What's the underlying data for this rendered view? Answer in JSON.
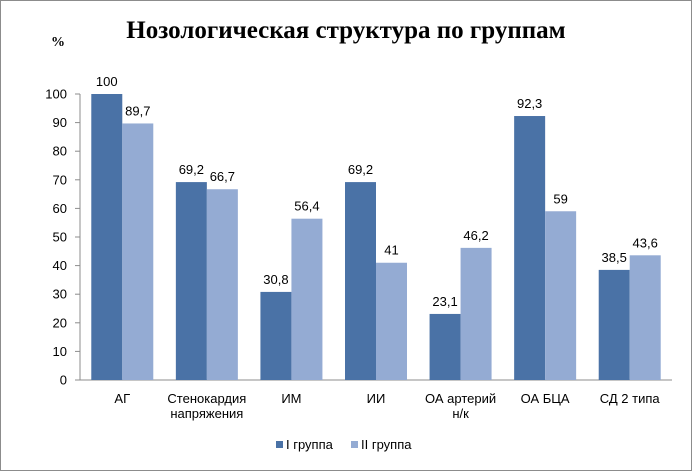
{
  "chart_data": {
    "type": "bar",
    "title": "Нозологическая структура по группам",
    "ylabel": "%",
    "xlabel": "",
    "ylim": [
      0,
      100
    ],
    "yticks": [
      0,
      10,
      20,
      30,
      40,
      50,
      60,
      70,
      80,
      90,
      100
    ],
    "grid": false,
    "legend_position": "bottom",
    "categories": [
      [
        "АГ"
      ],
      [
        "Стенокардия",
        "напряжения"
      ],
      [
        "ИМ"
      ],
      [
        "ИИ"
      ],
      [
        "ОА артерий",
        "н/к"
      ],
      [
        "ОА БЦА"
      ],
      [
        "СД 2 типа"
      ]
    ],
    "series": [
      {
        "name": "I группа",
        "color": "#4a72a6",
        "values": [
          100,
          69.2,
          30.8,
          69.2,
          23.1,
          92.3,
          38.5
        ],
        "labels": [
          "100",
          "69,2",
          "30,8",
          "69,2",
          "23,1",
          "92,3",
          "38,5"
        ]
      },
      {
        "name": "II группа",
        "color": "#94abd3",
        "values": [
          89.7,
          66.7,
          56.4,
          41,
          46.2,
          59,
          43.6
        ],
        "labels": [
          "89,7",
          "66,7",
          "56,4",
          "41",
          "46,2",
          "59",
          "43,6"
        ]
      }
    ]
  }
}
